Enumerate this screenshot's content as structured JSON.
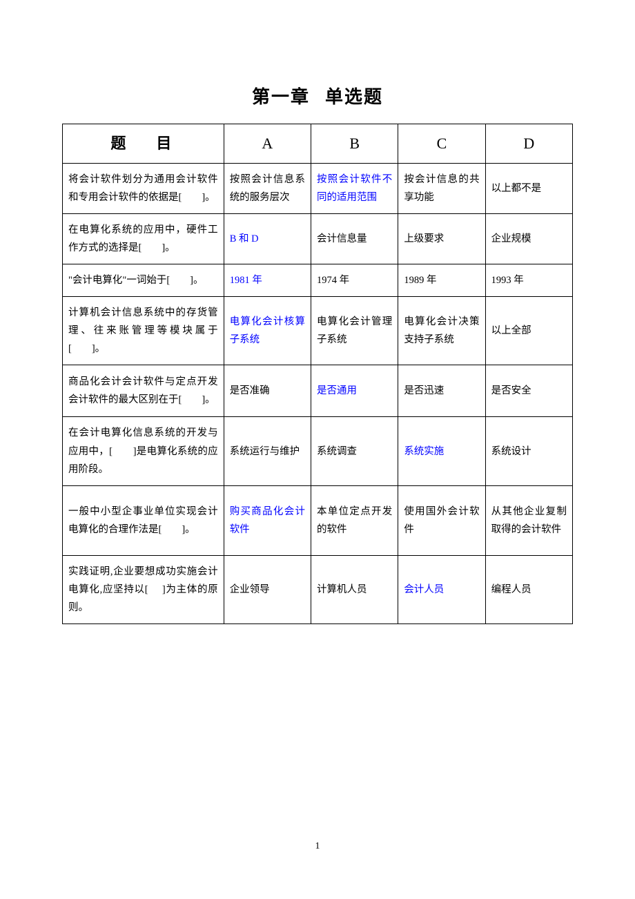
{
  "title_prefix": "第一章",
  "title_suffix": "单选题",
  "headers": {
    "question_1": "题",
    "question_2": "目",
    "a": "A",
    "b": "B",
    "c": "C",
    "d": "D"
  },
  "colors": {
    "text": "#000000",
    "answer": "#0000ff",
    "border": "#000000",
    "background": "#ffffff"
  },
  "rows": [
    {
      "question": "将会计软件划分为通用会计软件和专用会计软件的依据是[　　]。",
      "a": "按照会计信息系统的服务层次",
      "b": "按照会计软件不同的适用范围",
      "c": "按会计信息的共享功能",
      "d": "以上都不是",
      "answer": "b"
    },
    {
      "question": "在电算化系统的应用中，硬件工作方式的选择是[　　]。",
      "a": "B 和 D",
      "b": "会计信息量",
      "c": "上级要求",
      "d": "企业规模",
      "answer": "a"
    },
    {
      "question": "\"会计电算化\"一词始于[　　]。",
      "a": "1981 年",
      "b": "1974 年",
      "c": "1989 年",
      "d": "1993 年",
      "answer": "a"
    },
    {
      "question": "计算机会计信息系统中的存货管理、往来账管理等模块属于[　　]。",
      "a": "电算化会计核算子系统",
      "b": "电算化会计管理子系统",
      "c": "电算化会计决策支持子系统",
      "d": "以上全部",
      "answer": "a"
    },
    {
      "question": "商品化会计会计软件与定点开发会计软件的最大区别在于[　　]。",
      "a": "是否准确",
      "b": "是否通用",
      "c": "是否迅速",
      "d": "是否安全",
      "answer": "b"
    },
    {
      "question": "在会计电算化信息系统的开发与应用中，[　　]是电算化系统的应用阶段。",
      "a": "系统运行与维护",
      "b": "系统调查",
      "c": "系统实施",
      "d": "系统设计",
      "answer": "c"
    },
    {
      "question": "一般中小型企事业单位实现会计电算化的合理作法是[　　]。",
      "a": "购买商品化会计软件",
      "b": "本单位定点开发的软件",
      "c": "使用国外会计软件",
      "d": "从其他企业复制取得的会计软件",
      "answer": "a"
    },
    {
      "question": "实践证明,企业要想成功实施会计电算化,应坚持以[　 ]为主体的原则。",
      "a": "企业领导",
      "b": "计算机人员",
      "c": "会计人员",
      "d": "编程人员",
      "answer": "c"
    }
  ],
  "page_number": "1"
}
